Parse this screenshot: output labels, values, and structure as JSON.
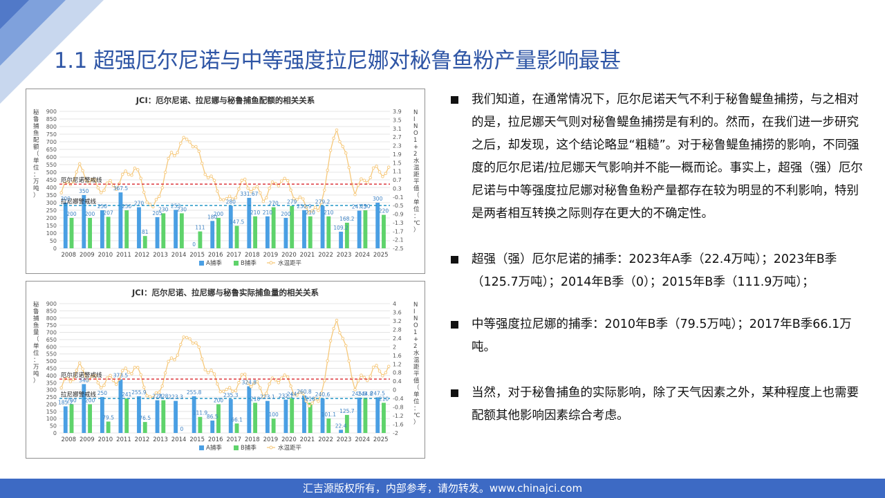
{
  "slide": {
    "title": "1.1 超强厄尔尼诺与中等强度拉尼娜对秘鲁鱼粉产量影响最甚",
    "footer": "汇吉源版权所有，内部参考，请勿转发。www.chinajci.com"
  },
  "bullets": [
    "我们知道，在通常情况下，厄尔尼诺天气不利于秘鲁鳀鱼捕捞，与之相对的是，拉尼娜天气则对秘鲁鳀鱼捕捞是有利的。然而，在我们进一步研究之后，却发现，这个结论略显“粗糙”。对于秘鲁鳀鱼捕捞的影响，不同强度的厄尔尼诺/拉尼娜天气影响并不能一概而论。事实上，超强（强）厄尔尼诺与中等强度拉尼娜对秘鲁鱼粉产量都存在较为明显的不利影响，特别是两者相互转换之际则存在更大的不确定性。",
    "超强（强）厄尔尼诺的捕季：2023年A季（22.4万吨）；2023年B季（125.7万吨）；2014年B季（0）；2015年B季（111.9万吨）；",
    "中等强度拉尼娜的捕季：2010年B季（79.5万吨）；2017年B季66.1万吨。",
    "当然，对于秘鲁捕鱼的实际影响，除了天气因素之外，某种程度上也需要配额其他影响因素综合考虑。"
  ],
  "chart_data": [
    {
      "type": "bar",
      "title": "JCI：厄尔尼诺、拉尼娜与秘鲁捕鱼配额的相关关系",
      "ylabel": "秘鲁捕鱼配额（单位：万吨）",
      "y2label": "NINO1+2水温距平值（单位：℃）",
      "ylim": [
        0,
        900
      ],
      "yticks": [
        "0",
        "50",
        "100",
        "150",
        "200",
        "250",
        "300",
        "350",
        "400",
        "450",
        "500",
        "550",
        "600",
        "650",
        "700",
        "750",
        "800",
        "850",
        "900"
      ],
      "y2lim": [
        -2.5,
        3.9
      ],
      "y2ticks": [
        "-2.5",
        "-2.1",
        "-1.7",
        "-1.3",
        "-0.9",
        "-0.5",
        "-0.1",
        "0.3",
        "0.7",
        "1.1",
        "1.5",
        "1.9",
        "2.3",
        "2.7",
        "3.1",
        "3.5",
        "3.9"
      ],
      "categories": [
        "2008",
        "2009",
        "2010",
        "2011",
        "2012",
        "2013",
        "2014",
        "2015",
        "2016",
        "2017",
        "2018",
        "2019",
        "2020",
        "2021",
        "2022",
        "2023",
        "2024",
        "2025"
      ],
      "series": [
        {
          "name": "A捕季",
          "color": "#4a9fe3",
          "values": [
            300,
            350,
            250,
            367.5,
            270,
            205,
            253,
            0,
            180,
            280,
            331.67,
            210,
            200,
            250.9,
            279.2,
            109.2,
            247.5,
            300
          ]
        },
        {
          "name": "B捕季",
          "color": "#5fd36b",
          "values": [
            200,
            200,
            207,
            250,
            81,
            230,
            230,
            111,
            200,
            147.5,
            210,
            270,
            279,
            210,
            210,
            168.2,
            250,
            220
          ]
        },
        {
          "name": "水温距平",
          "color": "#f6c87a",
          "values": [
            0.1,
            1.2,
            0.3,
            0.5,
            1.3,
            -0.8,
            1.9,
            2.7,
            0.9,
            -0.4,
            0.6,
            -0.1,
            0.8,
            -0.3,
            -0.9,
            3.2,
            0.2,
            1.1
          ]
        }
      ],
      "value_labels_a": [
        "300",
        "350",
        "250",
        "367.5",
        "270",
        "205",
        "253",
        "0",
        "180",
        "280",
        "331.67",
        "210",
        "200",
        "250.9",
        "279.2",
        "109.2",
        "247.5",
        "300"
      ],
      "value_labels_b": [
        "200",
        "200",
        "207",
        "250",
        "81",
        "230",
        "230",
        "111",
        "200",
        "147.5",
        "210",
        "270",
        "279",
        "210",
        "210",
        "168.2",
        "250",
        "220"
      ],
      "threshold_lines": [
        {
          "label": "厄尔尼诺警戒线",
          "value": 0.5,
          "axis": "y2",
          "color": "#d9242b"
        },
        {
          "label": "拉尼娜警戒线",
          "value": -0.5,
          "axis": "y2",
          "color": "#2496c6"
        }
      ],
      "legend": [
        "A捕季",
        "B捕季",
        "水温距平"
      ],
      "legend_position": "bottom"
    },
    {
      "type": "bar",
      "title": "JCI：厄尔尼诺、拉尼娜与秘鲁实际捕鱼量的相关关系",
      "ylabel": "秘鲁捕鱼量（单位：万吨）",
      "y2label": "NINO1+2水温距平值（单位：℃）",
      "ylim": [
        0,
        900
      ],
      "yticks": [
        "0",
        "50",
        "100",
        "150",
        "200",
        "250",
        "300",
        "350",
        "400",
        "450",
        "500",
        "550",
        "600",
        "650",
        "700",
        "750",
        "800",
        "850",
        "900"
      ],
      "y2lim": [
        -2,
        4
      ],
      "y2ticks": [
        "-2",
        "-1.6",
        "-1.2",
        "-0.8",
        "-0.4",
        "0",
        "0.4",
        "0.8",
        "1.2",
        "1.6",
        "2",
        "2.4",
        "2.8",
        "3.2",
        "3.6",
        "4"
      ],
      "categories": [
        "2008",
        "2009",
        "2010",
        "2011",
        "2012",
        "2013",
        "2014",
        "2015",
        "2016",
        "2017",
        "2018",
        "2019",
        "2020",
        "2021",
        "2022",
        "2023",
        "2024",
        "2025"
      ],
      "series": [
        {
          "name": "A捕季",
          "color": "#4a9fe3",
          "values": [
            185.2,
            340,
            250,
            373.5,
            255.9,
            228,
            223.3,
            255.8,
            86.5,
            235.3,
            324.8,
            223.1,
            232.1,
            260.8,
            240.6,
            22.4,
            245.9,
            247.5
          ]
        },
        {
          "name": "B捕季",
          "color": "#5fd36b",
          "values": [
            200,
            200,
            79.5,
            241,
            76.5,
            228,
            0,
            111.9,
            200,
            66.1,
            210,
            100,
            244,
            210,
            101.1,
            125.7,
            244.8,
            210
          ]
        },
        {
          "name": "水温距平",
          "color": "#f6c87a",
          "values": [
            0.1,
            1.0,
            0.3,
            0.5,
            1.1,
            -0.6,
            1.4,
            2.6,
            0.9,
            -0.2,
            0.6,
            -0.1,
            0.7,
            -0.3,
            -0.7,
            3.4,
            0.2,
            0.9
          ]
        }
      ],
      "value_labels_a": [
        "185.2",
        "340",
        "250",
        "373.5",
        "255.9",
        "228",
        "223.3",
        "255.8",
        "86.5",
        "235.3",
        "324.8",
        "223.1",
        "232.1",
        "260.8",
        "240.6",
        "22.4",
        "245.9",
        "247.5"
      ],
      "value_labels_b": [
        "200",
        "200",
        "79.5",
        "241",
        "76.5",
        "228",
        "0",
        "111.9",
        "200",
        "66.1",
        "210",
        "100",
        "244",
        "210",
        "101.1",
        "125.7",
        "244.8",
        "210"
      ],
      "threshold_lines": [
        {
          "label": "厄尔尼诺警戒线",
          "value": 0.5,
          "axis": "y2",
          "color": "#d9242b"
        },
        {
          "label": "拉尼娜警戒线",
          "value": -0.4,
          "axis": "y2",
          "color": "#2496c6"
        }
      ],
      "legend": [
        "A捕季",
        "B捕季",
        "水温距平"
      ],
      "legend_position": "bottom"
    }
  ]
}
